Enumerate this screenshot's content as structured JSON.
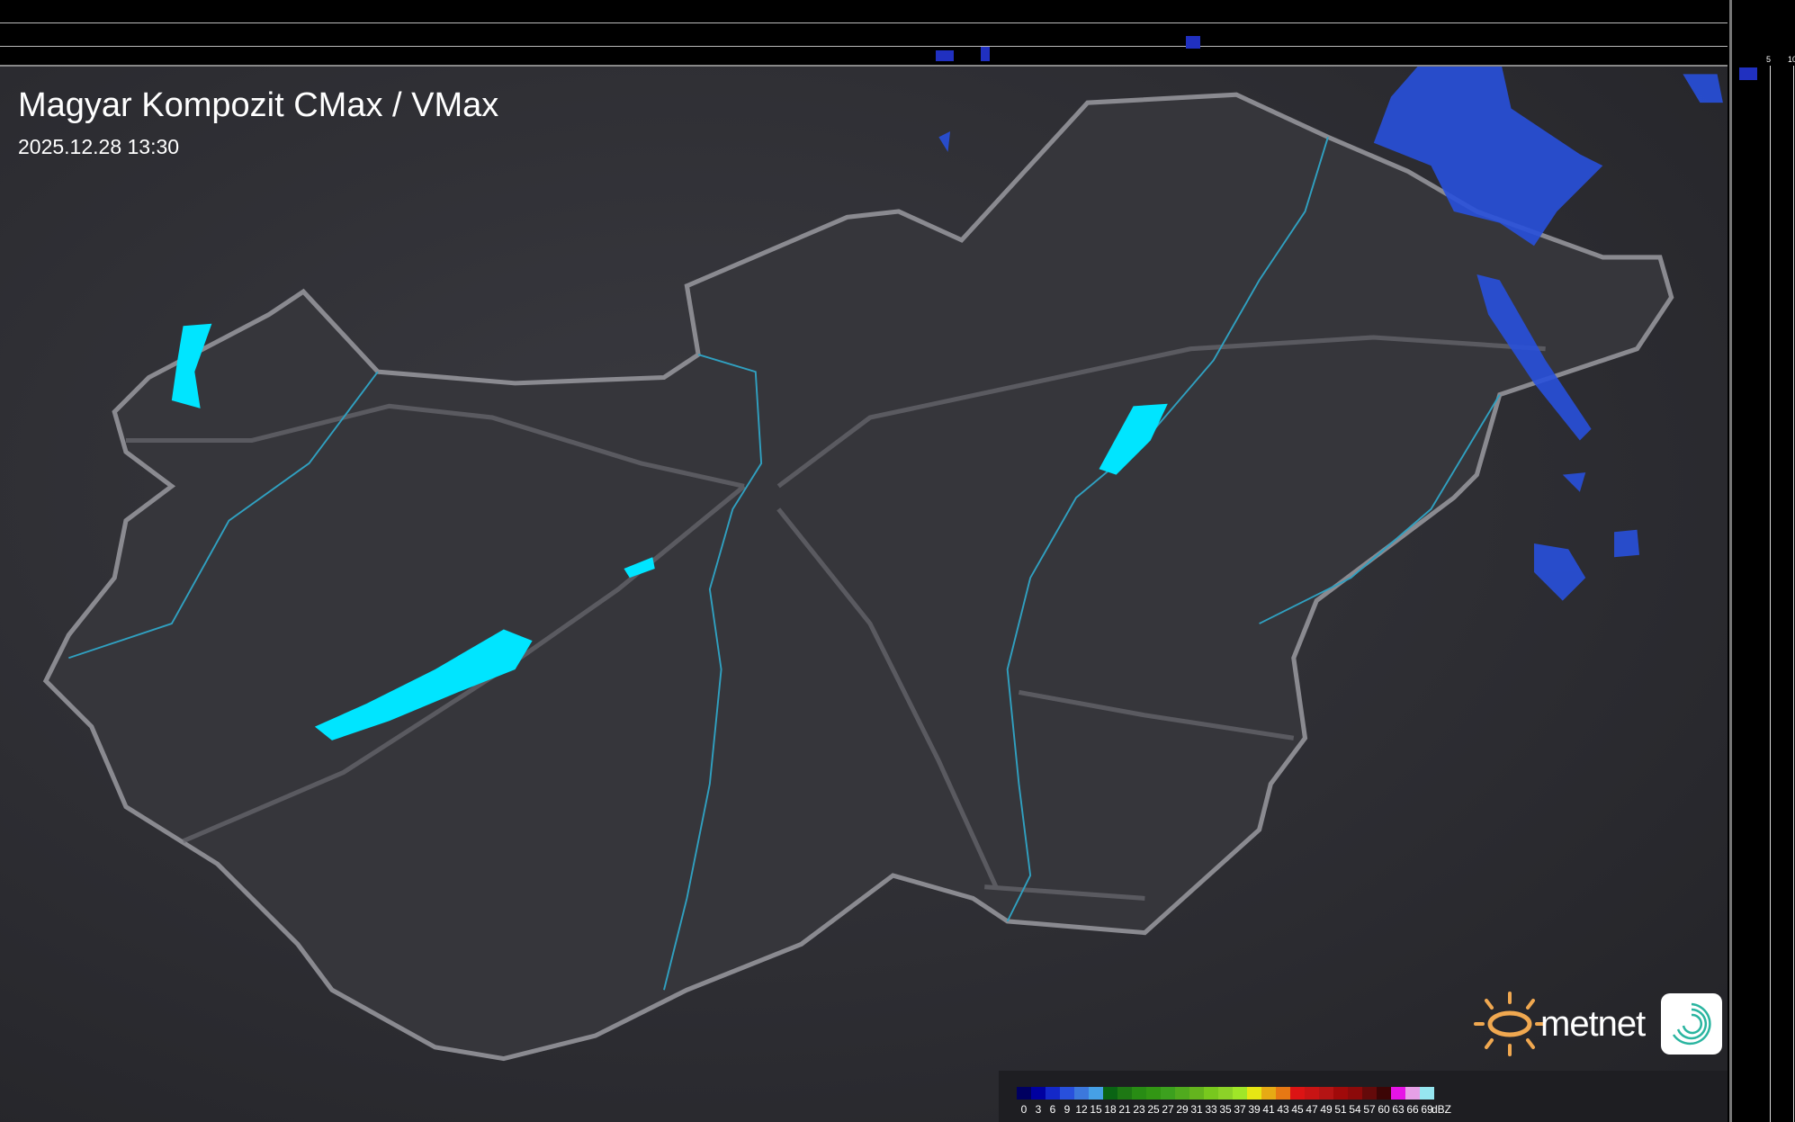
{
  "header": {
    "title": "Magyar Kompozit CMax / VMax",
    "timestamp": "2025.12.28 13:30"
  },
  "side_profile": {
    "top_ticks": [
      "10",
      "5"
    ],
    "right_ticks": [
      "5",
      "10"
    ]
  },
  "legend": {
    "unit": "dBZ",
    "labels": [
      "0",
      "3",
      "6",
      "9",
      "12",
      "15",
      "18",
      "21",
      "23",
      "25",
      "27",
      "29",
      "31",
      "33",
      "35",
      "37",
      "39",
      "41",
      "43",
      "45",
      "47",
      "49",
      "51",
      "54",
      "57",
      "60",
      "63",
      "66",
      "69"
    ],
    "colors": [
      "#000060",
      "#0000a0",
      "#1428c8",
      "#2850dc",
      "#3c78dc",
      "#46a0e6",
      "#0a6414",
      "#1e7814",
      "#288c14",
      "#329614",
      "#3ca01e",
      "#50aa1e",
      "#64b41e",
      "#78c81e",
      "#8cd228",
      "#a0e628",
      "#e6e614",
      "#e6aa14",
      "#e67814",
      "#dc1414",
      "#c81414",
      "#b41414",
      "#a00a0a",
      "#8c0a0a",
      "#640a0a",
      "#3c0505",
      "#e614e6",
      "#e6a0e6",
      "#96e6f0"
    ]
  },
  "branding": {
    "logo_text": "metnet",
    "logo_color": "#f0a850",
    "app_logo_color": "#2ab5a0"
  },
  "map": {
    "country_border_color": "#8a8a90",
    "river_color": "#30a0c0",
    "lake_color": "#00e5ff",
    "radar_echo_color": "#2850dc"
  }
}
